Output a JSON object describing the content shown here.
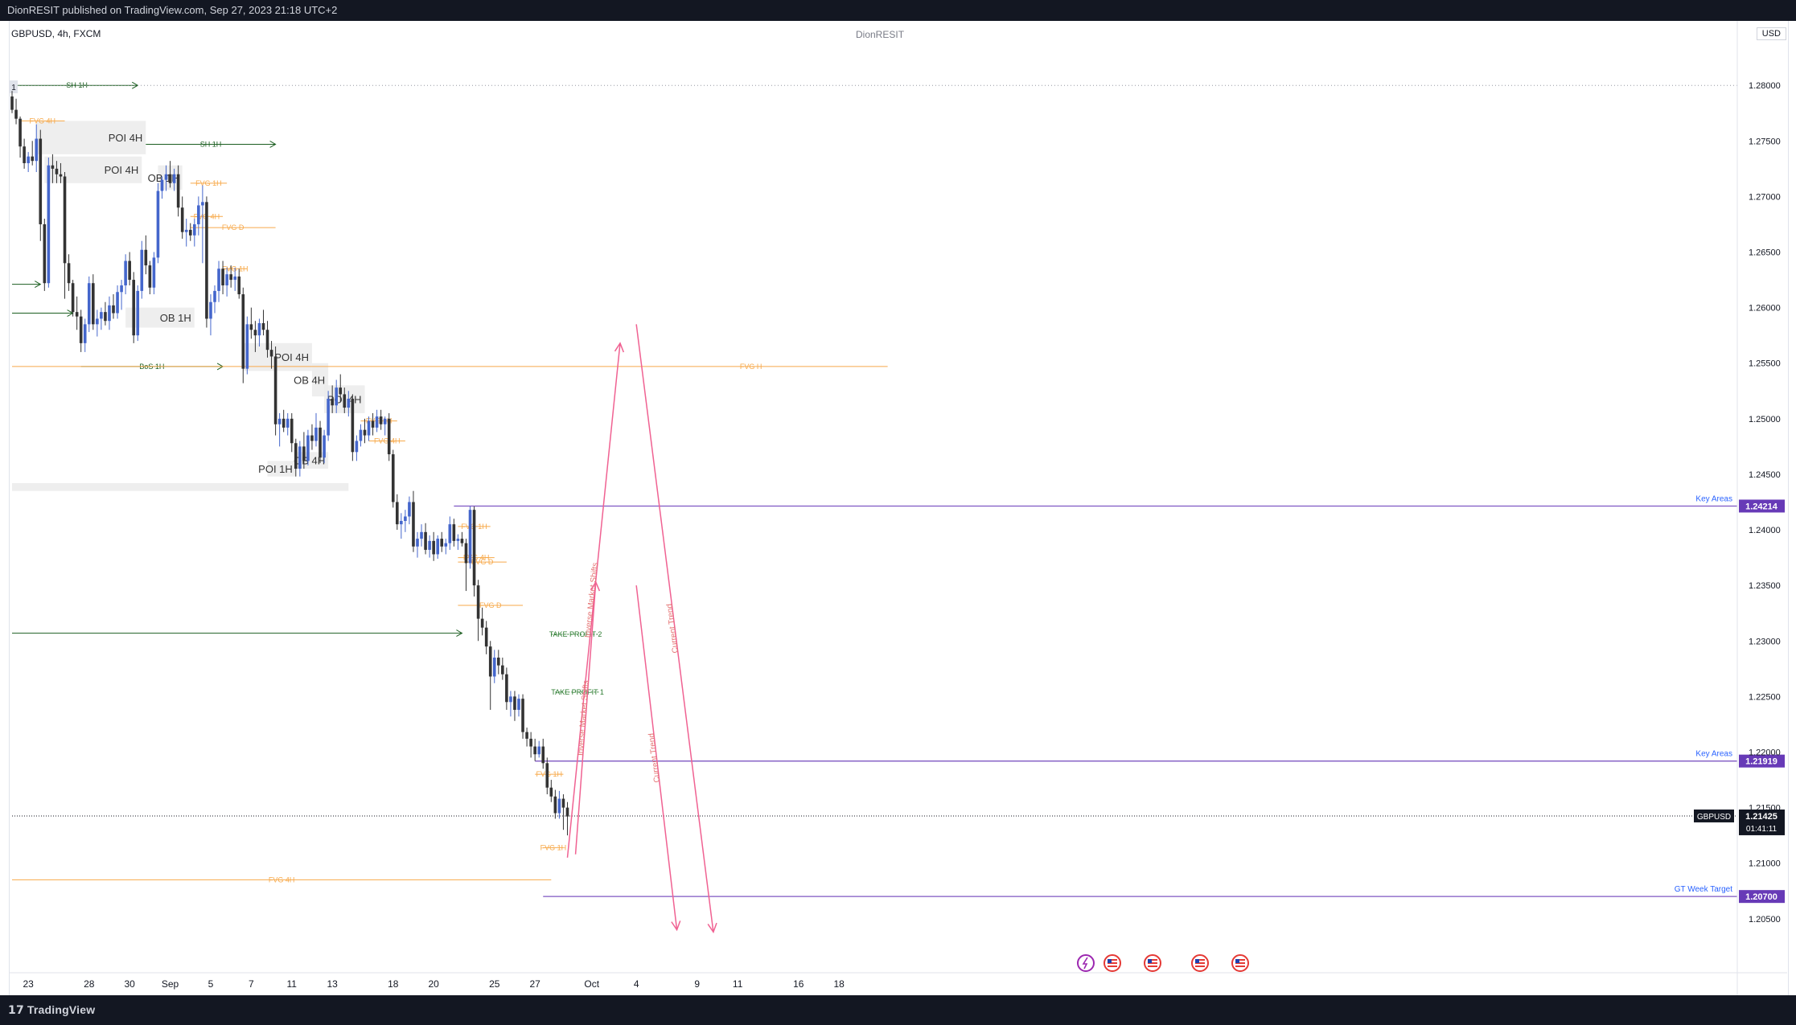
{
  "header": {
    "publisher_line": "DionRESIT published on TradingView.com, Sep 27, 2023 21:18 UTC+2"
  },
  "chart_header": {
    "symbol": "GBPUSD, 4h, FXCM",
    "author_watermark": "DionRESIT",
    "currency_button": "USD"
  },
  "footer": {
    "brand": "TradingView"
  },
  "chart_data": {
    "type": "candlestick",
    "symbol": "GBPUSD",
    "timeframe": "4h",
    "y_range": [
      1.2005,
      1.2845
    ],
    "price_ticks": [
      1.28,
      1.275,
      1.27,
      1.265,
      1.26,
      1.255,
      1.25,
      1.245,
      1.24,
      1.235,
      1.23,
      1.225,
      1.22,
      1.215,
      1.21,
      1.205
    ],
    "time_ticks": [
      {
        "label": "23",
        "i": 4
      },
      {
        "label": "28",
        "i": 19
      },
      {
        "label": "30",
        "i": 29
      },
      {
        "label": "Sep",
        "i": 39
      },
      {
        "label": "5",
        "i": 49
      },
      {
        "label": "7",
        "i": 59
      },
      {
        "label": "11",
        "i": 69
      },
      {
        "label": "13",
        "i": 79
      },
      {
        "label": "18",
        "i": 94
      },
      {
        "label": "20",
        "i": 104
      },
      {
        "label": "25",
        "i": 119
      },
      {
        "label": "27",
        "i": 129
      },
      {
        "label": "Oct",
        "i": 143
      },
      {
        "label": "4",
        "i": 154
      },
      {
        "label": "9",
        "i": 169
      },
      {
        "label": "11",
        "i": 179
      },
      {
        "label": "16",
        "i": 194
      },
      {
        "label": "18",
        "i": 204
      }
    ],
    "candles": [
      [
        1.279,
        1.2795,
        1.2775,
        1.2778
      ],
      [
        1.2778,
        1.2788,
        1.2765,
        1.277
      ],
      [
        1.277,
        1.2772,
        1.2735,
        1.2745
      ],
      [
        1.2745,
        1.2752,
        1.2725,
        1.273
      ],
      [
        1.273,
        1.274,
        1.2722,
        1.2736
      ],
      [
        1.2736,
        1.275,
        1.2728,
        1.2732
      ],
      [
        1.2732,
        1.2765,
        1.2722,
        1.2752
      ],
      [
        1.2752,
        1.276,
        1.266,
        1.2675
      ],
      [
        1.2675,
        1.268,
        1.2615,
        1.2622
      ],
      [
        1.2622,
        1.2735,
        1.2618,
        1.2728
      ],
      [
        1.2728,
        1.2738,
        1.2712,
        1.2725
      ],
      [
        1.2725,
        1.2732,
        1.2712,
        1.272
      ],
      [
        1.272,
        1.273,
        1.2712,
        1.2718
      ],
      [
        1.2718,
        1.2722,
        1.2608,
        1.264
      ],
      [
        1.264,
        1.2648,
        1.2615,
        1.2622
      ],
      [
        1.2622,
        1.2625,
        1.2592,
        1.2596
      ],
      [
        1.2596,
        1.261,
        1.258,
        1.2592
      ],
      [
        1.2592,
        1.2598,
        1.256,
        1.2568
      ],
      [
        1.2568,
        1.259,
        1.256,
        1.2585
      ],
      [
        1.2585,
        1.2628,
        1.2578,
        1.2622
      ],
      [
        1.2622,
        1.263,
        1.258,
        1.2585
      ],
      [
        1.2585,
        1.2598,
        1.2574,
        1.259
      ],
      [
        1.259,
        1.26,
        1.258,
        1.2596
      ],
      [
        1.2596,
        1.2605,
        1.2584,
        1.2588
      ],
      [
        1.2588,
        1.261,
        1.258,
        1.2602
      ],
      [
        1.2602,
        1.2612,
        1.259,
        1.2595
      ],
      [
        1.2595,
        1.262,
        1.259,
        1.2614
      ],
      [
        1.2614,
        1.2625,
        1.2598,
        1.262
      ],
      [
        1.262,
        1.2648,
        1.2612,
        1.2642
      ],
      [
        1.2642,
        1.265,
        1.262,
        1.2625
      ],
      [
        1.2625,
        1.2632,
        1.2568,
        1.2575
      ],
      [
        1.2575,
        1.262,
        1.257,
        1.2615
      ],
      [
        1.2615,
        1.266,
        1.2608,
        1.2652
      ],
      [
        1.2652,
        1.2665,
        1.263,
        1.2638
      ],
      [
        1.2638,
        1.2642,
        1.2612,
        1.2618
      ],
      [
        1.2618,
        1.265,
        1.2612,
        1.2645
      ],
      [
        1.2645,
        1.2712,
        1.264,
        1.2705
      ],
      [
        1.2705,
        1.2718,
        1.2698,
        1.2715
      ],
      [
        1.2715,
        1.2728,
        1.2705,
        1.272
      ],
      [
        1.272,
        1.2732,
        1.2708,
        1.2712
      ],
      [
        1.2712,
        1.2725,
        1.2705,
        1.272
      ],
      [
        1.272,
        1.2728,
        1.2682,
        1.269
      ],
      [
        1.269,
        1.27,
        1.2662,
        1.2668
      ],
      [
        1.2668,
        1.268,
        1.2655,
        1.267
      ],
      [
        1.267,
        1.2676,
        1.266,
        1.2665
      ],
      [
        1.2665,
        1.268,
        1.2655,
        1.2675
      ],
      [
        1.2675,
        1.27,
        1.2665,
        1.2692
      ],
      [
        1.2692,
        1.271,
        1.264,
        1.2695
      ],
      [
        1.2695,
        1.27,
        1.2582,
        1.259
      ],
      [
        1.259,
        1.2612,
        1.2575,
        1.2605
      ],
      [
        1.2605,
        1.262,
        1.2595,
        1.2615
      ],
      [
        1.2615,
        1.2642,
        1.2605,
        1.2635
      ],
      [
        1.2635,
        1.2642,
        1.2612,
        1.262
      ],
      [
        1.262,
        1.2636,
        1.261,
        1.263
      ],
      [
        1.263,
        1.2638,
        1.2618,
        1.2625
      ],
      [
        1.2625,
        1.2636,
        1.2615,
        1.2628
      ],
      [
        1.2628,
        1.2635,
        1.2608,
        1.2612
      ],
      [
        1.2612,
        1.2618,
        1.2532,
        1.2545
      ],
      [
        1.2545,
        1.2592,
        1.254,
        1.2585
      ],
      [
        1.2585,
        1.26,
        1.2572,
        1.258
      ],
      [
        1.258,
        1.2588,
        1.256,
        1.2575
      ],
      [
        1.2575,
        1.259,
        1.2565,
        1.2586
      ],
      [
        1.2586,
        1.2598,
        1.2575,
        1.258
      ],
      [
        1.258,
        1.2588,
        1.2555,
        1.2562
      ],
      [
        1.2562,
        1.257,
        1.2545,
        1.2556
      ],
      [
        1.2556,
        1.2565,
        1.2485,
        1.2495
      ],
      [
        1.2495,
        1.2505,
        1.2475,
        1.25
      ],
      [
        1.25,
        1.2508,
        1.2488,
        1.2492
      ],
      [
        1.2492,
        1.2505,
        1.2485,
        1.25
      ],
      [
        1.25,
        1.2505,
        1.247,
        1.2478
      ],
      [
        1.2478,
        1.2482,
        1.2448,
        1.2455
      ],
      [
        1.2455,
        1.248,
        1.2448,
        1.2475
      ],
      [
        1.2475,
        1.2488,
        1.2455,
        1.2462
      ],
      [
        1.2462,
        1.249,
        1.2458,
        1.2485
      ],
      [
        1.2485,
        1.2495,
        1.2472,
        1.248
      ],
      [
        1.248,
        1.2505,
        1.2475,
        1.2492
      ],
      [
        1.2492,
        1.2498,
        1.246,
        1.2465
      ],
      [
        1.2465,
        1.249,
        1.246,
        1.2485
      ],
      [
        1.2485,
        1.2525,
        1.248,
        1.2518
      ],
      [
        1.2518,
        1.253,
        1.2505,
        1.2512
      ],
      [
        1.2512,
        1.2535,
        1.2505,
        1.2528
      ],
      [
        1.2528,
        1.254,
        1.2515,
        1.2522
      ],
      [
        1.2522,
        1.2528,
        1.2505,
        1.251
      ],
      [
        1.251,
        1.2525,
        1.2502,
        1.2518
      ],
      [
        1.2518,
        1.2522,
        1.2462,
        1.247
      ],
      [
        1.247,
        1.2485,
        1.2462,
        1.248
      ],
      [
        1.248,
        1.2495,
        1.2475,
        1.249
      ],
      [
        1.249,
        1.25,
        1.2478,
        1.2485
      ],
      [
        1.2485,
        1.2502,
        1.248,
        1.2498
      ],
      [
        1.2498,
        1.2505,
        1.2485,
        1.2492
      ],
      [
        1.2492,
        1.2508,
        1.2488,
        1.2502
      ],
      [
        1.2502,
        1.2508,
        1.249,
        1.2495
      ],
      [
        1.2495,
        1.2502,
        1.2485,
        1.25
      ],
      [
        1.25,
        1.2505,
        1.2462,
        1.2468
      ],
      [
        1.2468,
        1.2472,
        1.242,
        1.2425
      ],
      [
        1.2425,
        1.2432,
        1.24,
        1.2405
      ],
      [
        1.2405,
        1.2415,
        1.2392,
        1.2408
      ],
      [
        1.2408,
        1.2418,
        1.2398,
        1.2412
      ],
      [
        1.2412,
        1.243,
        1.2405,
        1.2425
      ],
      [
        1.2425,
        1.2435,
        1.238,
        1.2385
      ],
      [
        1.2385,
        1.2398,
        1.2375,
        1.2392
      ],
      [
        1.2392,
        1.2405,
        1.2385,
        1.2398
      ],
      [
        1.2398,
        1.2406,
        1.2378,
        1.2382
      ],
      [
        1.2382,
        1.2395,
        1.2375,
        1.239
      ],
      [
        1.239,
        1.2398,
        1.2372,
        1.2378
      ],
      [
        1.2378,
        1.2395,
        1.2374,
        1.2392
      ],
      [
        1.2392,
        1.2398,
        1.238,
        1.2385
      ],
      [
        1.2385,
        1.2392,
        1.2378,
        1.2388
      ],
      [
        1.2388,
        1.2412,
        1.2382,
        1.2405
      ],
      [
        1.2405,
        1.241,
        1.2385,
        1.239
      ],
      [
        1.239,
        1.2396,
        1.2382,
        1.2392
      ],
      [
        1.2392,
        1.2398,
        1.2385,
        1.2388
      ],
      [
        1.2388,
        1.2392,
        1.2345,
        1.237
      ],
      [
        1.237,
        1.2421,
        1.2365,
        1.2418
      ],
      [
        1.2418,
        1.2421,
        1.234,
        1.235
      ],
      [
        1.235,
        1.2355,
        1.23,
        1.232
      ],
      [
        1.232,
        1.233,
        1.2305,
        1.2312
      ],
      [
        1.2312,
        1.2318,
        1.2288,
        1.2295
      ],
      [
        1.2295,
        1.23,
        1.2238,
        1.2268
      ],
      [
        1.2268,
        1.2292,
        1.2262,
        1.2285
      ],
      [
        1.2285,
        1.2292,
        1.227,
        1.2278
      ],
      [
        1.2278,
        1.2285,
        1.2265,
        1.227
      ],
      [
        1.227,
        1.2276,
        1.2238,
        1.2245
      ],
      [
        1.2245,
        1.2255,
        1.2232,
        1.225
      ],
      [
        1.225,
        1.2255,
        1.2228,
        1.2238
      ],
      [
        1.2238,
        1.2252,
        1.2232,
        1.2248
      ],
      [
        1.2248,
        1.2252,
        1.2212,
        1.2218
      ],
      [
        1.2218,
        1.2222,
        1.2205,
        1.2212
      ],
      [
        1.2212,
        1.2218,
        1.2195,
        1.2205
      ],
      [
        1.2205,
        1.2212,
        1.2192,
        1.2198
      ],
      [
        1.2198,
        1.221,
        1.2195,
        1.2205
      ],
      [
        1.2205,
        1.2212,
        1.2185,
        1.219
      ],
      [
        1.219,
        1.2195,
        1.2162,
        1.2168
      ],
      [
        1.2168,
        1.2175,
        1.2155,
        1.216
      ],
      [
        1.216,
        1.2166,
        1.214,
        1.2145
      ],
      [
        1.2145,
        1.2165,
        1.214,
        1.2158
      ],
      [
        1.2158,
        1.2162,
        1.213,
        1.215
      ],
      [
        1.215,
        1.2155,
        1.2125,
        1.2142
      ]
    ],
    "zones": [
      {
        "label": "POI 4H",
        "x0": 6,
        "x1": 33,
        "y0": 1.2768,
        "y1": 1.2738
      },
      {
        "label": "POI 4H",
        "x0": 8,
        "x1": 32,
        "y0": 1.2736,
        "y1": 1.2712
      },
      {
        "label": "OB 1H",
        "x0": 36,
        "x1": 42,
        "y0": 1.2728,
        "y1": 1.2706
      },
      {
        "label": "OB 1H",
        "x0": 28,
        "x1": 45,
        "y0": 1.26,
        "y1": 1.2582
      },
      {
        "label": "POI 4H",
        "x0": 57,
        "x1": 74,
        "y0": 1.2568,
        "y1": 1.2543
      },
      {
        "label": "OB 4H",
        "x0": 74,
        "x1": 78,
        "y0": 1.255,
        "y1": 1.252
      },
      {
        "label": "POI 4H",
        "x0": 77,
        "x1": 87,
        "y0": 1.253,
        "y1": 1.2505
      },
      {
        "label": "POI 1H",
        "x0": 63,
        "x1": 70,
        "y0": 1.2462,
        "y1": 1.2448
      },
      {
        "label": "OB 4H",
        "x0": 70,
        "x1": 78,
        "y0": 1.247,
        "y1": 1.2455
      },
      {
        "label": "",
        "x0": 0,
        "x1": 83,
        "y0": 1.2442,
        "y1": 1.2435
      }
    ],
    "hlines": [
      {
        "label": "SH 1H",
        "x0": 1,
        "x1": 31,
        "y": 1.28,
        "color": "#1b5e20",
        "arrow": true
      },
      {
        "label": "SH 1H",
        "x0": 33,
        "x1": 65,
        "y": 1.2747,
        "color": "#1b5e20",
        "arrow": true
      },
      {
        "label": "BoS 1H",
        "x0": 17,
        "x1": 52,
        "y": 1.2547,
        "color": "#1b5e20",
        "arrow": true
      },
      {
        "label": "",
        "x0": 0,
        "x1": 7,
        "y": 1.2621,
        "color": "#1b5e20",
        "arrow": true
      },
      {
        "label": "",
        "x0": 0,
        "x1": 15,
        "y": 1.2595,
        "color": "#1b5e20",
        "arrow": true
      },
      {
        "label": "",
        "x0": 0,
        "x1": 111,
        "y": 1.2307,
        "color": "#1b5e20",
        "arrow": true
      },
      {
        "label": "FVG 4H",
        "x0": 2,
        "x1": 13,
        "y": 1.2768,
        "color": "#f7a94a"
      },
      {
        "label": "FVG 1H",
        "x0": 44,
        "x1": 53,
        "y": 1.2712,
        "color": "#f7a94a"
      },
      {
        "label": "FVG 4H",
        "x0": 44,
        "x1": 52,
        "y": 1.2682,
        "color": "#f7a94a"
      },
      {
        "label": "FVG D",
        "x0": 44,
        "x1": 65,
        "y": 1.2672,
        "color": "#f7a94a"
      },
      {
        "label": "FVG 1H",
        "x0": 52,
        "x1": 58,
        "y": 1.2635,
        "color": "#f7a94a"
      },
      {
        "label": "FVG 1H",
        "x0": 86,
        "x1": 95,
        "y": 1.2498,
        "color": "#f7a94a"
      },
      {
        "label": "FVG 4H",
        "x0": 88,
        "x1": 97,
        "y": 1.248,
        "color": "#f7a94a"
      },
      {
        "label": "FVG 1H",
        "x0": 110,
        "x1": 118,
        "y": 1.2403,
        "color": "#f7a94a"
      },
      {
        "label": "FVG 4H",
        "x0": 110,
        "x1": 119,
        "y": 1.2375,
        "color": "#f7a94a"
      },
      {
        "label": "FVG D",
        "x0": 110,
        "x1": 122,
        "y": 1.2371,
        "color": "#f7a94a"
      },
      {
        "label": "FVG D",
        "x0": 110,
        "x1": 126,
        "y": 1.2332,
        "color": "#f7a94a"
      },
      {
        "label": "FVG 1H",
        "x0": 129,
        "x1": 136,
        "y": 1.218,
        "color": "#f7a94a"
      },
      {
        "label": "FVG 1H",
        "x0": 131,
        "x1": 136,
        "y": 1.2114,
        "color": "#f7a94a"
      },
      {
        "label": "FVG H",
        "x0": 0,
        "x1": 216,
        "y": 1.2547,
        "color": "#f7a94a"
      },
      {
        "label": "FVG 4H",
        "x0": 0,
        "x1": 133,
        "y": 1.2085,
        "color": "#f7a94a"
      },
      {
        "label": "TAKE PROFIT 2",
        "x0": 133,
        "x1": 145,
        "y": 1.2306,
        "color": "#2e7d32",
        "dotted": true
      },
      {
        "label": "TAKE PROFIT 1",
        "x0": 134,
        "x1": 145,
        "y": 1.2254,
        "color": "#2e7d32",
        "dotted": true
      }
    ],
    "key_levels": [
      {
        "label": "Key Areas",
        "price": "1.24214",
        "y": 1.24214,
        "x0": 109
      },
      {
        "label": "Key Areas",
        "price": "1.21919",
        "y": 1.21919,
        "x0": 129
      },
      {
        "label": "GT Week Target",
        "price": "1.20700",
        "y": 1.207,
        "x0": 131
      }
    ],
    "current_price": {
      "symbol": "GBPUSD",
      "price": "1.21425",
      "countdown": "01:41:11",
      "y": 1.21425
    },
    "sketch_lines": [
      {
        "label": "Inverse Market Shifts",
        "x0": 137,
        "y0": 1.2105,
        "x1": 150,
        "y1": 1.2568,
        "arrow": true
      },
      {
        "label": "Inverse Market Shifts",
        "x0": 139,
        "y0": 1.2108,
        "x1": 144,
        "y1": 1.2353,
        "arrow": true
      },
      {
        "label": "Current Trend",
        "x0": 154,
        "y0": 1.2585,
        "x1": 173,
        "y1": 1.2038,
        "arrow": true
      },
      {
        "label": "Current Trend",
        "x0": 154,
        "y0": 1.235,
        "x1": 164,
        "y1": 1.204,
        "arrow": true
      }
    ],
    "event_icons": [
      "lightning",
      "us-flag",
      "us-flag",
      "us-flag",
      "us-flag"
    ]
  }
}
